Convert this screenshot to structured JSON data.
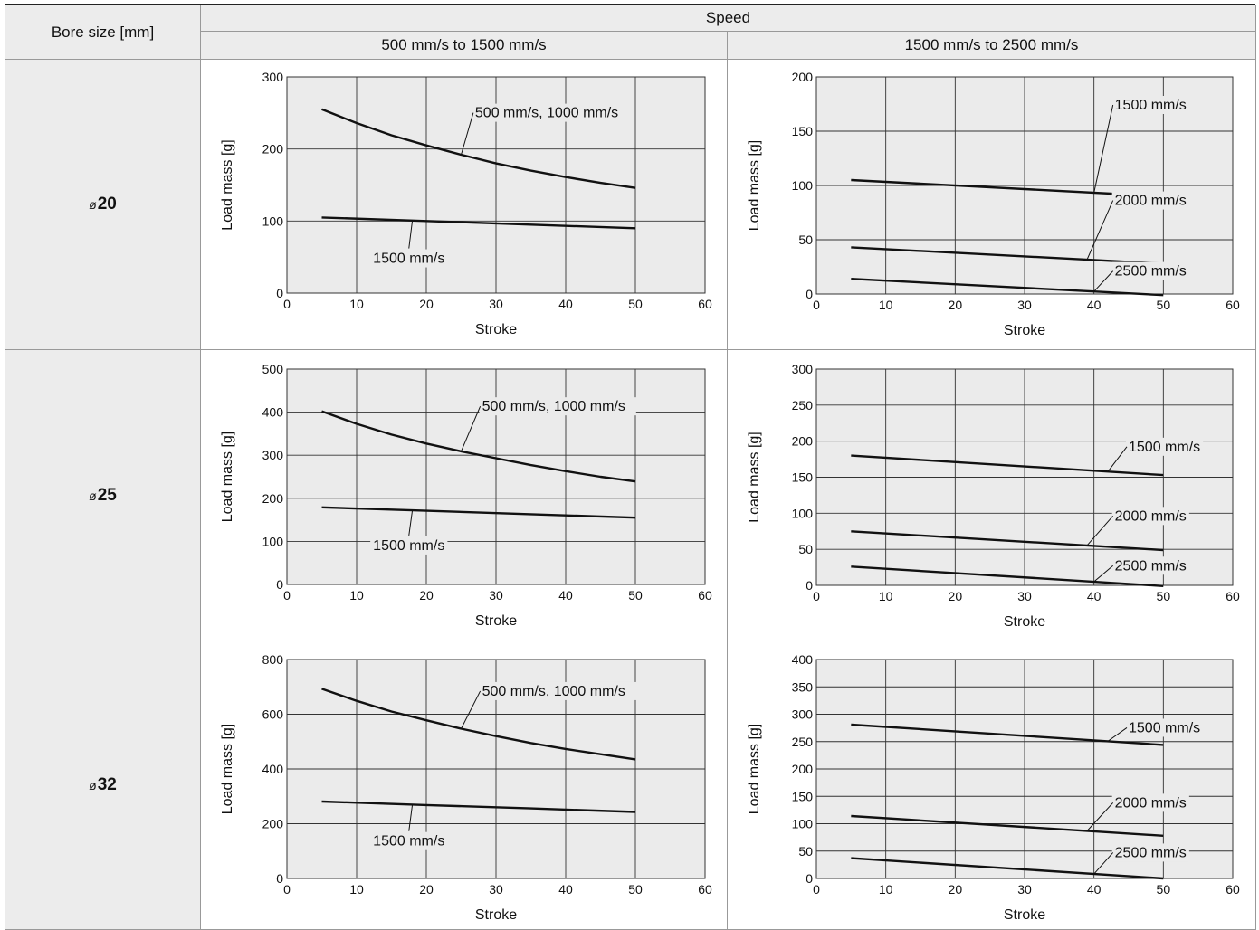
{
  "header": {
    "bore_label": "Bore size [mm]",
    "speed_label": "Speed",
    "col1_label": "500 mm/s to 1500 mm/s",
    "col2_label": "1500 mm/s to 2500 mm/s"
  },
  "rows": [
    {
      "prefix": "ø",
      "value": "20"
    },
    {
      "prefix": "ø",
      "value": "25"
    },
    {
      "prefix": "ø",
      "value": "32"
    }
  ],
  "colors": {
    "header_bg": "#ececec",
    "plot_bg": "#ebebeb",
    "line": "#111111",
    "grid": "#333333"
  },
  "chart_data": [
    {
      "id": "r1c1",
      "type": "line",
      "xlabel": "Stroke",
      "ylabel": "Load mass [g]",
      "xlim": [
        0,
        60
      ],
      "ylim": [
        0,
        300
      ],
      "xticks": [
        0,
        10,
        20,
        30,
        40,
        50,
        60
      ],
      "yticks": [
        0,
        100,
        200,
        300
      ],
      "series": [
        {
          "name": "500 mm/s, 1000 mm/s",
          "x": [
            5,
            10,
            15,
            20,
            25,
            30,
            35,
            40,
            45,
            50
          ],
          "y": [
            255,
            236,
            219,
            205,
            192,
            180,
            170,
            161,
            153,
            146
          ]
        },
        {
          "name": "1500 mm/s",
          "x": [
            5,
            20,
            35,
            50
          ],
          "y": [
            105,
            100,
            95,
            90
          ]
        }
      ],
      "annotations": [
        {
          "text": "500 mm/s, 1000 mm/s",
          "series": 0,
          "at_x": 25,
          "label_x": 27,
          "label_y": 244,
          "anchor": "start"
        },
        {
          "text": "1500 mm/s",
          "series": 1,
          "at_x": 18,
          "label_x": 17.5,
          "label_y": 42,
          "anchor": "middle"
        }
      ]
    },
    {
      "id": "r1c2",
      "type": "line",
      "xlabel": "Stroke",
      "ylabel": "Load mass [g]",
      "xlim": [
        0,
        60
      ],
      "ylim": [
        0,
        200
      ],
      "xticks": [
        0,
        10,
        20,
        30,
        40,
        50,
        60
      ],
      "yticks": [
        0,
        50,
        100,
        150,
        200
      ],
      "series": [
        {
          "name": "1500 mm/s",
          "x": [
            5,
            50
          ],
          "y": [
            105,
            90
          ]
        },
        {
          "name": "2000 mm/s",
          "x": [
            5,
            50
          ],
          "y": [
            43,
            28
          ]
        },
        {
          "name": "2500 mm/s",
          "x": [
            5,
            50
          ],
          "y": [
            14,
            -1
          ]
        }
      ],
      "annotations": [
        {
          "text": "1500 mm/s",
          "series": 0,
          "at_x": 40,
          "label_x": 43,
          "label_y": 170,
          "anchor": "start"
        },
        {
          "text": "2000 mm/s",
          "series": 1,
          "at_x": 39,
          "label_x": 43,
          "label_y": 82,
          "anchor": "start"
        },
        {
          "text": "2500 mm/s",
          "series": 2,
          "at_x": 40,
          "label_x": 43,
          "label_y": 17,
          "anchor": "start"
        }
      ]
    },
    {
      "id": "r2c1",
      "type": "line",
      "xlabel": "Stroke",
      "ylabel": "Load mass [g]",
      "xlim": [
        0,
        60
      ],
      "ylim": [
        0,
        500
      ],
      "xticks": [
        0,
        10,
        20,
        30,
        40,
        50,
        60
      ],
      "yticks": [
        0,
        100,
        200,
        300,
        400,
        500
      ],
      "series": [
        {
          "name": "500 mm/s, 1000 mm/s",
          "x": [
            5,
            10,
            15,
            20,
            25,
            30,
            35,
            40,
            45,
            50
          ],
          "y": [
            402,
            373,
            348,
            327,
            309,
            293,
            277,
            263,
            250,
            239
          ]
        },
        {
          "name": "1500 mm/s",
          "x": [
            5,
            20,
            35,
            50
          ],
          "y": [
            179,
            171,
            163,
            155
          ]
        }
      ],
      "annotations": [
        {
          "text": "500 mm/s, 1000 mm/s",
          "series": 0,
          "at_x": 25,
          "label_x": 28,
          "label_y": 403,
          "anchor": "start"
        },
        {
          "text": "1500 mm/s",
          "series": 1,
          "at_x": 18,
          "label_x": 17.5,
          "label_y": 80,
          "anchor": "middle"
        }
      ]
    },
    {
      "id": "r2c2",
      "type": "line",
      "xlabel": "Stroke",
      "ylabel": "Load mass [g]",
      "xlim": [
        0,
        60
      ],
      "ylim": [
        0,
        300
      ],
      "xticks": [
        0,
        10,
        20,
        30,
        40,
        50,
        60
      ],
      "yticks": [
        0,
        50,
        100,
        150,
        200,
        250,
        300
      ],
      "series": [
        {
          "name": "1500 mm/s",
          "x": [
            5,
            50
          ],
          "y": [
            180,
            153
          ]
        },
        {
          "name": "2000 mm/s",
          "x": [
            5,
            50
          ],
          "y": [
            75,
            49
          ]
        },
        {
          "name": "2500 mm/s",
          "x": [
            5,
            50
          ],
          "y": [
            26,
            -1
          ]
        }
      ],
      "annotations": [
        {
          "text": "1500 mm/s",
          "series": 0,
          "at_x": 42,
          "label_x": 45,
          "label_y": 186,
          "anchor": "start"
        },
        {
          "text": "2000 mm/s",
          "series": 1,
          "at_x": 39,
          "label_x": 43,
          "label_y": 90,
          "anchor": "start"
        },
        {
          "text": "2500 mm/s",
          "series": 2,
          "at_x": 40,
          "label_x": 43,
          "label_y": 21,
          "anchor": "start"
        }
      ]
    },
    {
      "id": "r3c1",
      "type": "line",
      "xlabel": "Stroke",
      "ylabel": "Load mass [g]",
      "xlim": [
        0,
        60
      ],
      "ylim": [
        0,
        800
      ],
      "xticks": [
        0,
        10,
        20,
        30,
        40,
        50,
        60
      ],
      "yticks": [
        0,
        200,
        400,
        600,
        800
      ],
      "series": [
        {
          "name": "500 mm/s, 1000 mm/s",
          "x": [
            5,
            10,
            15,
            20,
            25,
            30,
            35,
            40,
            45,
            50
          ],
          "y": [
            693,
            649,
            610,
            578,
            547,
            520,
            495,
            473,
            454,
            435
          ]
        },
        {
          "name": "1500 mm/s",
          "x": [
            5,
            20,
            35,
            50
          ],
          "y": [
            281,
            268,
            256,
            243
          ]
        }
      ],
      "annotations": [
        {
          "text": "500 mm/s, 1000 mm/s",
          "series": 0,
          "at_x": 25,
          "label_x": 28,
          "label_y": 668,
          "anchor": "start"
        },
        {
          "text": "1500 mm/s",
          "series": 1,
          "at_x": 18,
          "label_x": 17.5,
          "label_y": 120,
          "anchor": "middle"
        }
      ]
    },
    {
      "id": "r3c2",
      "type": "line",
      "xlabel": "Stroke",
      "ylabel": "Load mass [g]",
      "xlim": [
        0,
        60
      ],
      "ylim": [
        0,
        400
      ],
      "xticks": [
        0,
        10,
        20,
        30,
        40,
        50,
        60
      ],
      "yticks": [
        0,
        50,
        100,
        150,
        200,
        250,
        300,
        350,
        400
      ],
      "series": [
        {
          "name": "1500 mm/s",
          "x": [
            5,
            50
          ],
          "y": [
            281,
            244
          ]
        },
        {
          "name": "2000 mm/s",
          "x": [
            5,
            50
          ],
          "y": [
            114,
            78
          ]
        },
        {
          "name": "2500 mm/s",
          "x": [
            5,
            50
          ],
          "y": [
            37,
            0
          ]
        }
      ],
      "annotations": [
        {
          "text": "1500 mm/s",
          "series": 0,
          "at_x": 42,
          "label_x": 45,
          "label_y": 267,
          "anchor": "start"
        },
        {
          "text": "2000 mm/s",
          "series": 1,
          "at_x": 39,
          "label_x": 43,
          "label_y": 130,
          "anchor": "start"
        },
        {
          "text": "2500 mm/s",
          "series": 2,
          "at_x": 40,
          "label_x": 43,
          "label_y": 39,
          "anchor": "start"
        }
      ]
    }
  ]
}
